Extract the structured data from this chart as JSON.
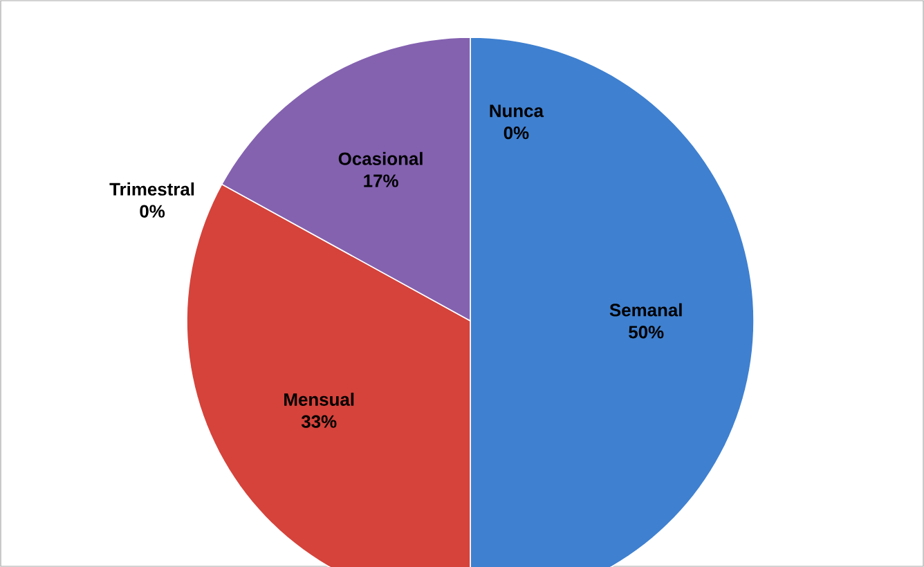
{
  "chart_data": {
    "type": "pie",
    "categories": [
      "Semanal",
      "Mensual",
      "Trimestral",
      "Ocasional",
      "Nunca"
    ],
    "values": [
      50,
      33,
      0,
      17,
      0
    ],
    "colors": [
      "#3f80d0",
      "#d5433b",
      "#c0504d",
      "#8462b0",
      "#9bbb59"
    ],
    "value_labels": [
      "50%",
      "33%",
      "0%",
      "17%",
      "0%"
    ]
  }
}
